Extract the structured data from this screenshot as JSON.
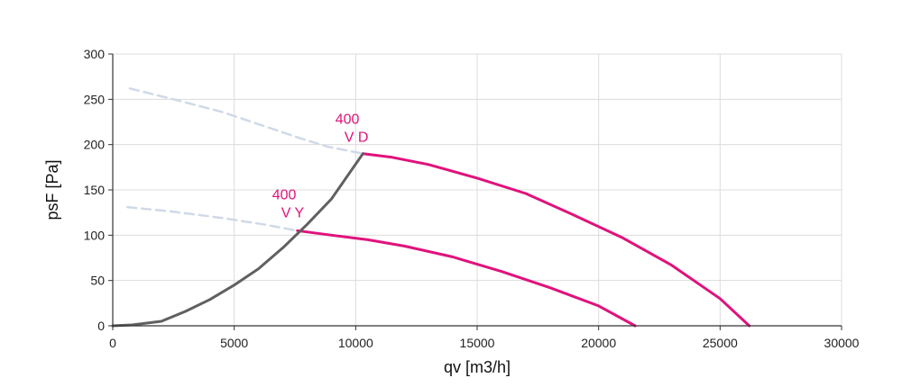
{
  "chart_data": {
    "type": "line",
    "xlabel": "qv [m3/h]",
    "ylabel": "psF [Pa]",
    "xlim": [
      0,
      30000
    ],
    "ylim": [
      0,
      300
    ],
    "x_ticks": [
      0,
      5000,
      10000,
      15000,
      20000,
      25000,
      30000
    ],
    "y_ticks": [
      0,
      50,
      100,
      150,
      200,
      250,
      300
    ],
    "x_tick_labels": [
      "0",
      "5000",
      "10000",
      "15000",
      "20000",
      "25000",
      "30000"
    ],
    "y_tick_labels": [
      "0",
      "50",
      "100",
      "150",
      "200",
      "250",
      "300"
    ],
    "grid": true,
    "colors": {
      "fan_curve": "#e0127c",
      "dashed_curve": "#cfd9e8",
      "system_curve": "#606060",
      "grid": "#dcdcdc",
      "axis": "#333333"
    },
    "series": [
      {
        "style": "solid-magenta",
        "label_lines": [
          "400",
          "V D"
        ],
        "label_at": [
          10200,
          193
        ],
        "points": [
          [
            10300,
            190
          ],
          [
            11500,
            186
          ],
          [
            13000,
            178
          ],
          [
            15000,
            163
          ],
          [
            17000,
            146
          ],
          [
            19000,
            122
          ],
          [
            21000,
            97
          ],
          [
            23000,
            67
          ],
          [
            25000,
            30
          ],
          [
            26200,
            0
          ]
        ]
      },
      {
        "style": "solid-magenta",
        "label_lines": [
          "400",
          "V Y"
        ],
        "label_at": [
          7600,
          110
        ],
        "points": [
          [
            7600,
            105
          ],
          [
            9000,
            100
          ],
          [
            10500,
            95
          ],
          [
            12000,
            88
          ],
          [
            14000,
            76
          ],
          [
            16000,
            60
          ],
          [
            18000,
            42
          ],
          [
            20000,
            22
          ],
          [
            21500,
            0
          ]
        ]
      },
      {
        "style": "dashed",
        "points": [
          [
            700,
            262
          ],
          [
            2500,
            250
          ],
          [
            4500,
            236
          ],
          [
            6500,
            218
          ],
          [
            7600,
            208
          ],
          [
            8800,
            198
          ],
          [
            10300,
            190
          ]
        ]
      },
      {
        "style": "dashed",
        "points": [
          [
            600,
            131
          ],
          [
            2500,
            126
          ],
          [
            4500,
            119
          ],
          [
            6200,
            112
          ],
          [
            7600,
            105
          ]
        ]
      },
      {
        "style": "solid-grey",
        "points": [
          [
            0,
            0
          ],
          [
            800,
            1
          ],
          [
            2000,
            5
          ],
          [
            3000,
            16
          ],
          [
            4000,
            29
          ],
          [
            5000,
            45
          ],
          [
            6000,
            63
          ],
          [
            7000,
            86
          ],
          [
            8000,
            112
          ],
          [
            9000,
            140
          ],
          [
            10300,
            190
          ]
        ]
      }
    ]
  }
}
